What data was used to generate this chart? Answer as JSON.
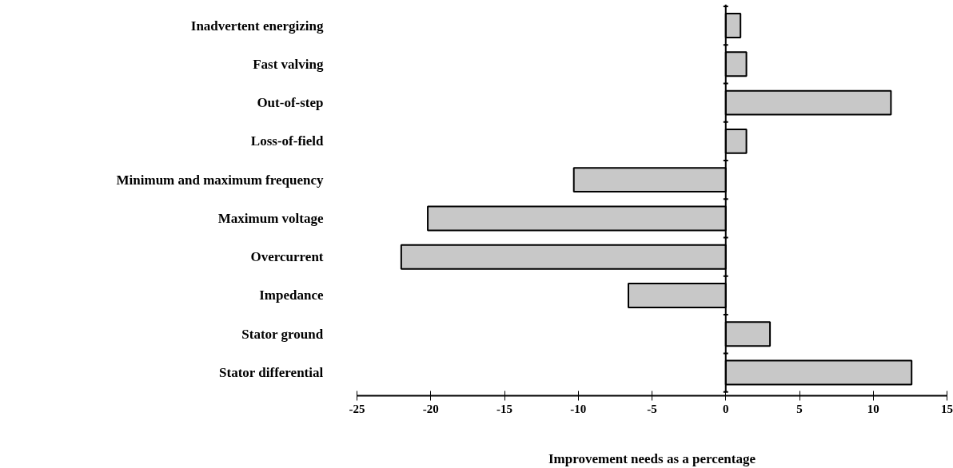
{
  "chart_data": {
    "type": "bar",
    "orientation": "horizontal",
    "xlabel": "Improvement needs as a percentage",
    "categories": [
      "Inadvertent energizing",
      "Fast valving",
      "Out-of-step",
      "Loss-of-field",
      "Minimum and maximum frequency",
      "Maximum voltage",
      "Overcurrent",
      "Impedance",
      "Stator ground",
      "Stator differential"
    ],
    "values": [
      1.0,
      1.4,
      11.2,
      1.4,
      -10.3,
      -20.2,
      -22.0,
      -6.6,
      3.0,
      12.6
    ],
    "color": "#c8c8c8",
    "xlim": [
      -25,
      15
    ],
    "xticks": [
      -25,
      -20,
      -15,
      -10,
      -5,
      0,
      5,
      10,
      15
    ]
  }
}
